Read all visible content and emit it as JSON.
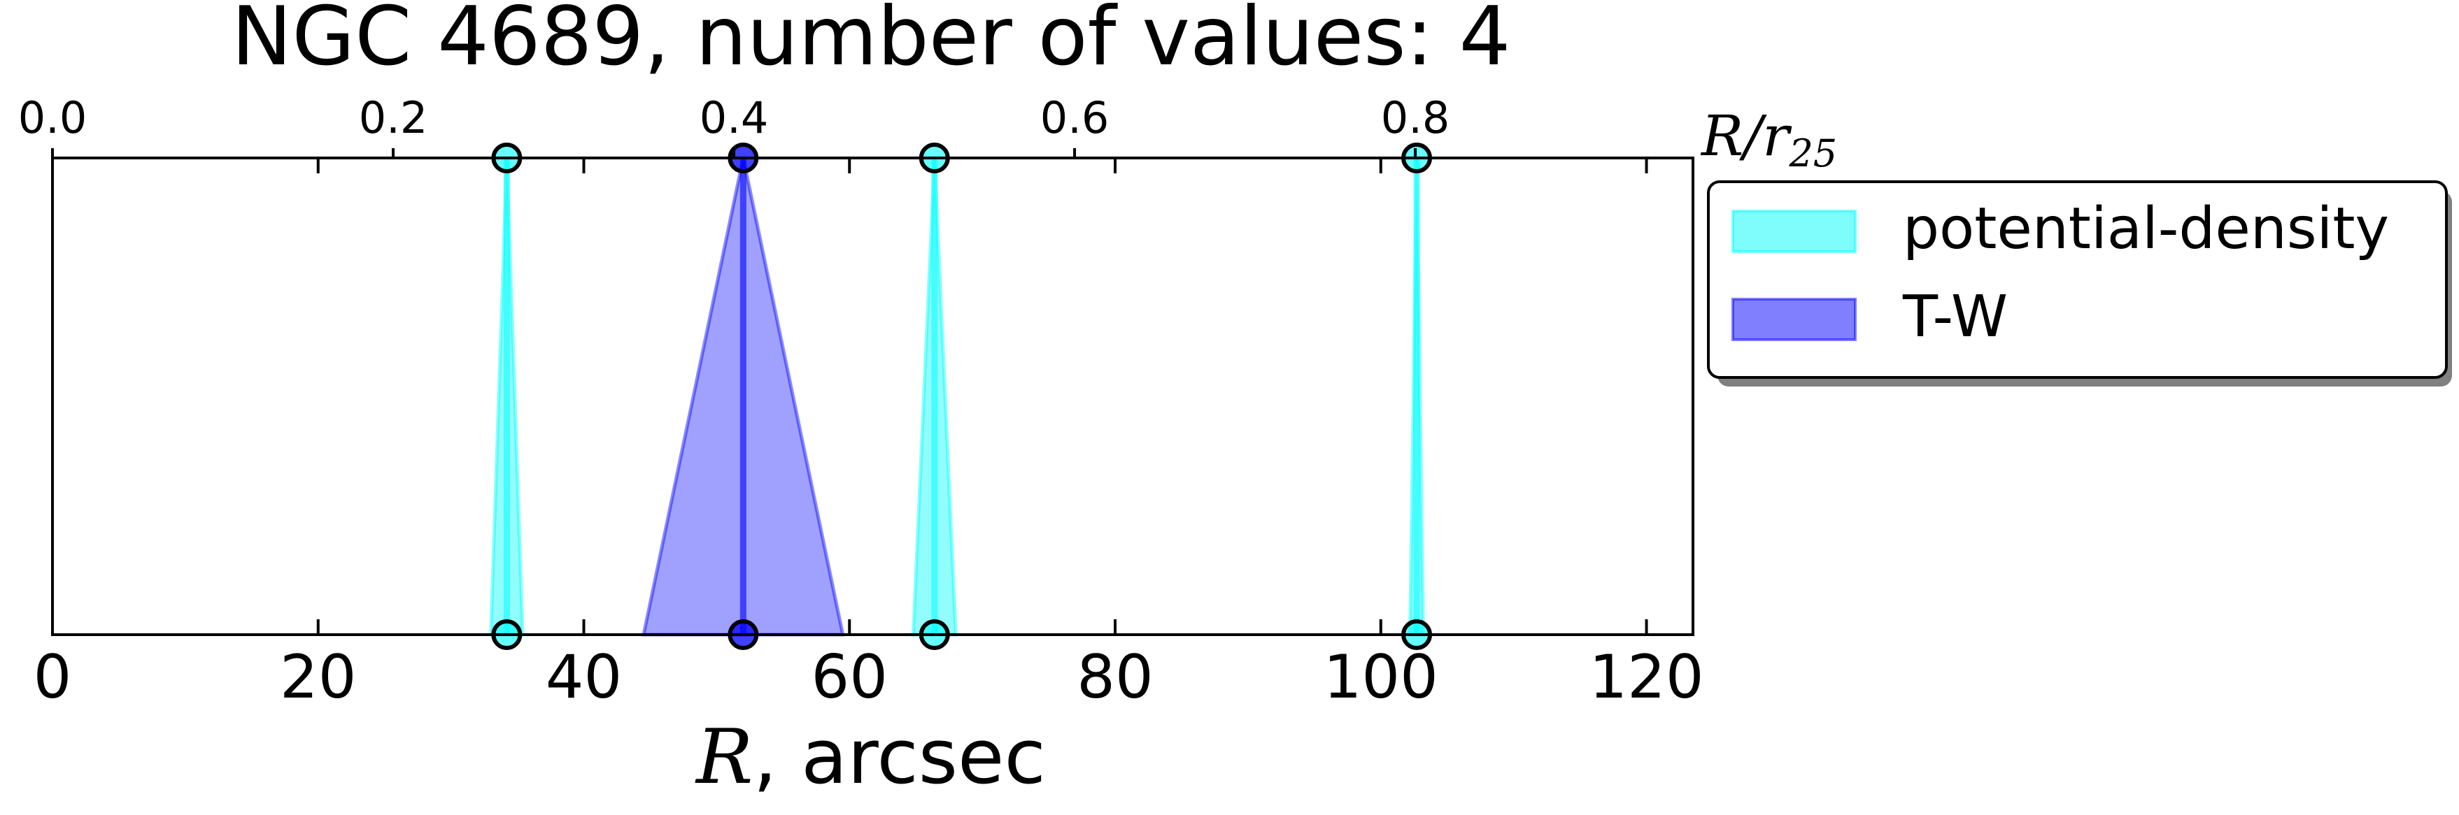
{
  "chart_data": {
    "type": "line",
    "title": "NGC 4689, number of values: 4",
    "xlabel_symbol": "R",
    "xlabel_unit": ", arcsec",
    "x2label_symbol": "R/r",
    "x2label_subscript": "25",
    "xlim": [
      0,
      123.5
    ],
    "x_ticks": [
      0,
      20,
      40,
      60,
      80,
      100,
      120
    ],
    "x_tick_labels": [
      "0",
      "20",
      "40",
      "60",
      "80",
      "100",
      "120"
    ],
    "x2lim": [
      0,
      0.963
    ],
    "x2_ticks": [
      0.0,
      0.2,
      0.4,
      0.6,
      0.8
    ],
    "x2_tick_labels": [
      "0.0",
      "0.2",
      "0.4",
      "0.6",
      "0.8"
    ],
    "grid": false,
    "legend_position": "outside-right-top",
    "series": [
      {
        "name": "potential-density",
        "color": "#00ffff",
        "fill_color": "#7ffdfd",
        "values": [
          {
            "r": 34.2,
            "err": 1.2
          },
          {
            "r": 66.4,
            "err": 1.6
          },
          {
            "r": 102.7,
            "err": 0.5
          }
        ]
      },
      {
        "name": "T-W",
        "color": "#0000ff",
        "fill_color": "#8080ff",
        "values": [
          {
            "r": 52.0,
            "err": 7.5
          }
        ]
      }
    ]
  }
}
